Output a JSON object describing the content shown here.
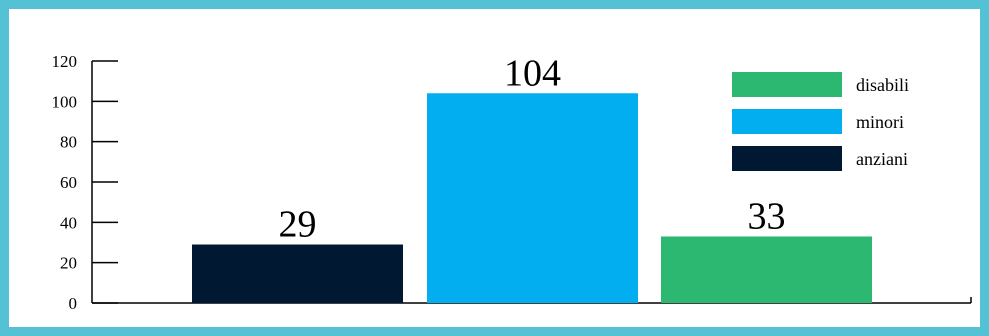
{
  "chart_data": {
    "type": "bar",
    "title": "",
    "xlabel": "",
    "ylabel": "",
    "ylim": [
      0,
      120
    ],
    "yticks": [
      0,
      20,
      40,
      60,
      80,
      100,
      120
    ],
    "grid": false,
    "legend_position": "top-right",
    "bars": [
      {
        "name": "anziani",
        "value": 29,
        "label": "29",
        "color": "#011833"
      },
      {
        "name": "minori",
        "value": 104,
        "label": "104",
        "color": "#02aeef"
      },
      {
        "name": "disabili",
        "value": 33,
        "label": "33",
        "color": "#2db872"
      }
    ],
    "legend": [
      {
        "name": "disabili",
        "color": "#2db872"
      },
      {
        "name": "minori",
        "color": "#02aeef"
      },
      {
        "name": "anziani",
        "color": "#011833"
      }
    ]
  },
  "colors": {
    "frame_border": "#54c1d4",
    "axis": "#000000",
    "text": "#000000"
  }
}
